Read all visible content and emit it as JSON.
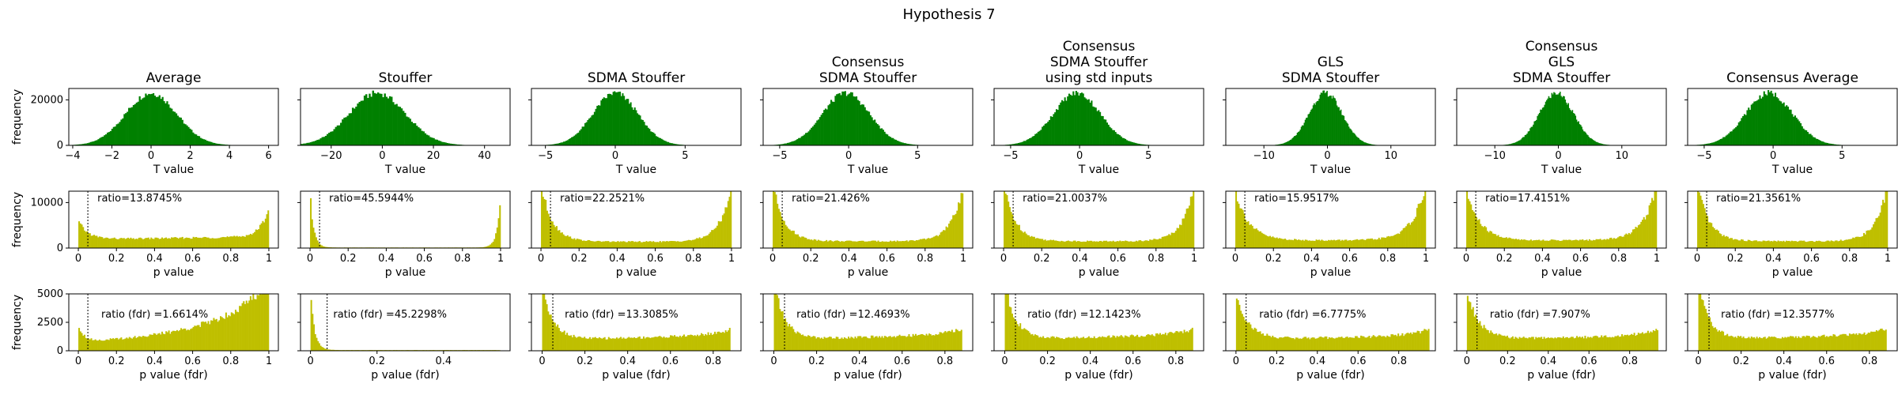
{
  "suptitle": "Hypothesis 7",
  "colors": {
    "t_hist": "#008000",
    "p_hist": "#bfbf00",
    "axes": "#000000"
  },
  "chart_data": [
    {
      "type": "histogram",
      "row": "t_value",
      "xlabel": "T value",
      "ylabel": "frequency",
      "ylim": [
        0,
        25000
      ],
      "yticks": [
        0,
        20000
      ],
      "panels": [
        {
          "title": [
            "Average"
          ],
          "dist": {
            "mean": 0.0,
            "sd": 1.3,
            "peak": 23000
          },
          "xlim": [
            -4.2,
            6.5
          ],
          "xticks": [
            -4,
            -2,
            0,
            2,
            4,
            6
          ]
        },
        {
          "title": [
            "Stouffer"
          ],
          "dist": {
            "mean": -2.0,
            "sd": 11.0,
            "peak": 23000
          },
          "xlim": [
            -32,
            50
          ],
          "xticks": [
            -20,
            0,
            20,
            40
          ]
        },
        {
          "title": [
            "SDMA Stouffer"
          ],
          "dist": {
            "mean": 0.0,
            "sd": 1.6,
            "peak": 23000
          },
          "xlim": [
            -6,
            9
          ],
          "xticks": [
            -5,
            0,
            5
          ]
        },
        {
          "title": [
            "Consensus",
            "SDMA Stouffer"
          ],
          "dist": {
            "mean": -0.2,
            "sd": 1.7,
            "peak": 23000
          },
          "xlim": [
            -6.2,
            9
          ],
          "xticks": [
            -5,
            0,
            5
          ]
        },
        {
          "title": [
            "Consensus",
            "SDMA Stouffer",
            "using std inputs"
          ],
          "dist": {
            "mean": -0.2,
            "sd": 1.7,
            "peak": 23000
          },
          "xlim": [
            -6.2,
            9
          ],
          "xticks": [
            -5,
            0,
            5
          ]
        },
        {
          "title": [
            "GLS",
            "SDMA Stouffer"
          ],
          "dist": {
            "mean": -0.3,
            "sd": 2.6,
            "peak": 23000
          },
          "xlim": [
            -16,
            17
          ],
          "xticks": [
            -10,
            0,
            10
          ]
        },
        {
          "title": [
            "Consensus",
            "GLS",
            "SDMA Stouffer"
          ],
          "dist": {
            "mean": -0.3,
            "sd": 2.7,
            "peak": 23000
          },
          "xlim": [
            -16,
            17
          ],
          "xticks": [
            -10,
            0,
            10
          ]
        },
        {
          "title": [
            "Consensus Average"
          ],
          "dist": {
            "mean": -0.3,
            "sd": 1.7,
            "peak": 23000
          },
          "xlim": [
            -6.2,
            9
          ],
          "xticks": [
            -5,
            0,
            5
          ]
        }
      ]
    },
    {
      "type": "histogram",
      "row": "p_value",
      "xlabel": "p value",
      "ylabel": "frequency",
      "ylim": [
        0,
        12500
      ],
      "yticks": [
        0,
        10000
      ],
      "threshold": 0.05,
      "panels": [
        {
          "annotation": "ratio=13.8745%",
          "xlim": [
            -0.05,
            1.05
          ],
          "xticks": [
            0.0,
            0.2,
            0.4,
            0.6,
            0.8,
            1.0
          ],
          "range": [
            0,
            1
          ],
          "shape": {
            "base": 1900,
            "left": 4000,
            "left_decay": 0.05,
            "right": 7000,
            "right_decay": 0.04,
            "tilt": 600
          }
        },
        {
          "annotation": "ratio=45.5944%",
          "xlim": [
            -0.05,
            1.05
          ],
          "xticks": [
            0.0,
            0.2,
            0.4,
            0.6,
            0.8,
            1.0
          ],
          "range": [
            0,
            1
          ],
          "shape": {
            "base": 120,
            "left": 12500,
            "left_decay": 0.018,
            "right": 12500,
            "right_decay": 0.018,
            "tilt": 0
          }
        },
        {
          "annotation": "ratio=22.2521%",
          "xlim": [
            -0.05,
            1.05
          ],
          "xticks": [
            0.0,
            0.2,
            0.4,
            0.6,
            0.8,
            1.0
          ],
          "range": [
            0,
            1
          ],
          "shape": {
            "base": 1400,
            "left": 12500,
            "left_decay": 0.06,
            "right": 12500,
            "right_decay": 0.06,
            "tilt": 0
          }
        },
        {
          "annotation": "ratio=21.426%",
          "xlim": [
            -0.05,
            1.05
          ],
          "xticks": [
            0.0,
            0.2,
            0.4,
            0.6,
            0.8,
            1.0
          ],
          "range": [
            0,
            1
          ],
          "shape": {
            "base": 1500,
            "left": 12500,
            "left_decay": 0.06,
            "right": 12500,
            "right_decay": 0.06,
            "tilt": 0
          }
        },
        {
          "annotation": "ratio=21.0037%",
          "xlim": [
            -0.05,
            1.05
          ],
          "xticks": [
            0.0,
            0.2,
            0.4,
            0.6,
            0.8,
            1.0
          ],
          "range": [
            0,
            1
          ],
          "shape": {
            "base": 1500,
            "left": 12500,
            "left_decay": 0.06,
            "right": 12500,
            "right_decay": 0.06,
            "tilt": 0
          }
        },
        {
          "annotation": "ratio=15.9517%",
          "xlim": [
            -0.05,
            1.05
          ],
          "xticks": [
            0.0,
            0.2,
            0.4,
            0.6,
            0.8,
            1.0
          ],
          "range": [
            0,
            1
          ],
          "shape": {
            "base": 1700,
            "left": 11000,
            "left_decay": 0.07,
            "right": 12500,
            "right_decay": 0.07,
            "tilt": 0
          }
        },
        {
          "annotation": "ratio=17.4151%",
          "xlim": [
            -0.05,
            1.05
          ],
          "xticks": [
            0.0,
            0.2,
            0.4,
            0.6,
            0.8,
            1.0
          ],
          "range": [
            0,
            1
          ],
          "shape": {
            "base": 1700,
            "left": 11000,
            "left_decay": 0.07,
            "right": 12500,
            "right_decay": 0.07,
            "tilt": 0
          }
        },
        {
          "annotation": "ratio=21.3561%",
          "xlim": [
            -0.05,
            1.05
          ],
          "xticks": [
            0.0,
            0.2,
            0.4,
            0.6,
            0.8,
            1.0
          ],
          "range": [
            0,
            1
          ],
          "shape": {
            "base": 1500,
            "left": 12500,
            "left_decay": 0.06,
            "right": 12500,
            "right_decay": 0.06,
            "tilt": 0
          }
        }
      ]
    },
    {
      "type": "histogram",
      "row": "p_value_fdr",
      "xlabel": "p value (fdr)",
      "ylabel": "frequency",
      "ylim": [
        0,
        5000
      ],
      "yticks": [
        0,
        2500,
        5000
      ],
      "threshold": 0.05,
      "panels": [
        {
          "annotation": "ratio (fdr) =1.6614%",
          "xlim": [
            -0.05,
            1.05
          ],
          "xticks": [
            0.0,
            0.2,
            0.4,
            0.6,
            0.8,
            1.0
          ],
          "range": [
            0,
            1
          ],
          "shape": {
            "base": 700,
            "left": 1500,
            "left_decay": 0.03,
            "right": 4500,
            "right_decay": 0.25,
            "tilt": 800
          }
        },
        {
          "annotation": "ratio (fdr) =45.2298%",
          "xlim": [
            -0.03,
            0.6
          ],
          "xticks": [
            0.0,
            0.2,
            0.4
          ],
          "range": [
            0,
            0.57
          ],
          "shape": {
            "base": 60,
            "left": 5000,
            "left_decay": 0.012,
            "right": 0,
            "right_decay": 0.05,
            "tilt": 0
          }
        },
        {
          "annotation": "ratio (fdr) =13.3085%",
          "xlim": [
            -0.05,
            0.93
          ],
          "xticks": [
            0.0,
            0.2,
            0.4,
            0.6,
            0.8
          ],
          "range": [
            0,
            0.88
          ],
          "shape": {
            "base": 950,
            "left": 5000,
            "left_decay": 0.05,
            "right": 500,
            "right_decay": 0.1,
            "tilt": 400
          }
        },
        {
          "annotation": "ratio (fdr) =12.4693%",
          "xlim": [
            -0.05,
            0.93
          ],
          "xticks": [
            0.0,
            0.2,
            0.4,
            0.6,
            0.8
          ],
          "range": [
            0,
            0.88
          ],
          "shape": {
            "base": 1000,
            "left": 5000,
            "left_decay": 0.05,
            "right": 500,
            "right_decay": 0.1,
            "tilt": 400
          }
        },
        {
          "annotation": "ratio (fdr) =12.1423%",
          "xlim": [
            -0.05,
            0.93
          ],
          "xticks": [
            0.0,
            0.2,
            0.4,
            0.6,
            0.8
          ],
          "range": [
            0,
            0.88
          ],
          "shape": {
            "base": 1000,
            "left": 5000,
            "left_decay": 0.05,
            "right": 500,
            "right_decay": 0.1,
            "tilt": 400
          }
        },
        {
          "annotation": "ratio (fdr) =6.7775%",
          "xlim": [
            -0.05,
            0.98
          ],
          "xticks": [
            0.0,
            0.2,
            0.4,
            0.6,
            0.8
          ],
          "range": [
            0,
            0.95
          ],
          "shape": {
            "base": 1000,
            "left": 4000,
            "left_decay": 0.06,
            "right": 600,
            "right_decay": 0.1,
            "tilt": 300
          }
        },
        {
          "annotation": "ratio (fdr) =7.907%",
          "xlim": [
            -0.05,
            0.98
          ],
          "xticks": [
            0.0,
            0.2,
            0.4,
            0.6,
            0.8
          ],
          "range": [
            0,
            0.94
          ],
          "shape": {
            "base": 1000,
            "left": 4200,
            "left_decay": 0.06,
            "right": 600,
            "right_decay": 0.1,
            "tilt": 300
          }
        },
        {
          "annotation": "ratio (fdr) =12.3577%",
          "xlim": [
            -0.05,
            0.93
          ],
          "xticks": [
            0.0,
            0.2,
            0.4,
            0.6,
            0.8
          ],
          "range": [
            0,
            0.88
          ],
          "shape": {
            "base": 1000,
            "left": 5000,
            "left_decay": 0.05,
            "right": 500,
            "right_decay": 0.1,
            "tilt": 400
          }
        }
      ]
    }
  ]
}
